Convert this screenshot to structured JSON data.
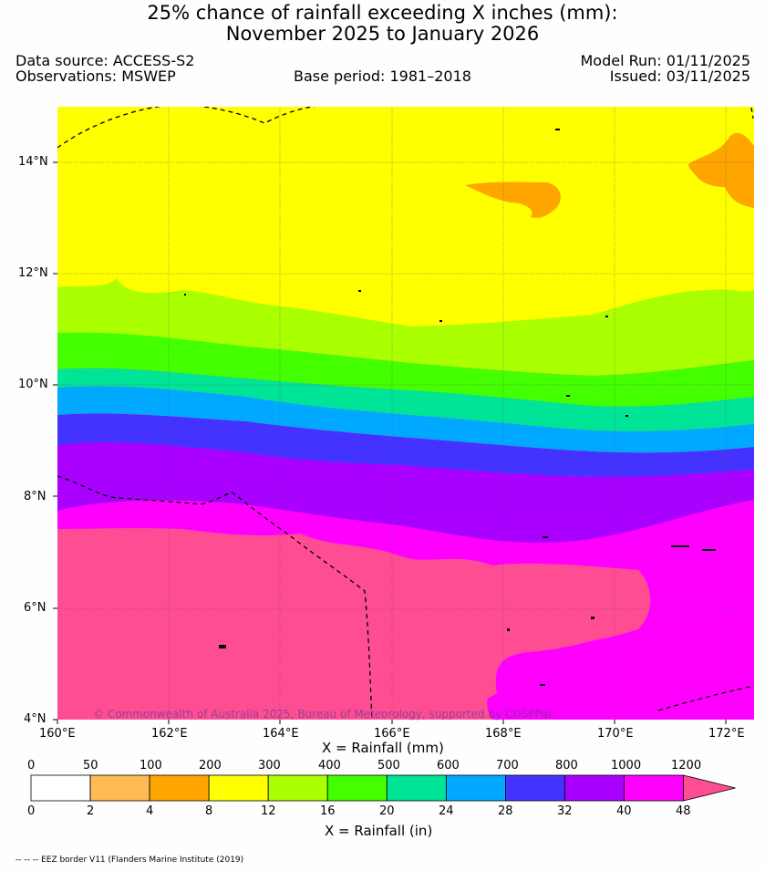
{
  "title": {
    "line1": "25% chance of rainfall exceeding X inches (mm):",
    "line2": "November 2025 to January 2026"
  },
  "meta": {
    "data_source": "Data source: ACCESS-S2",
    "observations": "Observations: MSWEP",
    "base_period": "Base period: 1981–2018",
    "model_run": "Model Run: 01/11/2025",
    "issued": "Issued: 03/11/2025"
  },
  "map": {
    "lat_labels": [
      "14°N",
      "12°N",
      "10°N",
      "8°N",
      "6°N",
      "4°N"
    ],
    "lon_labels": [
      "160°E",
      "162°E",
      "164°E",
      "166°E",
      "168°E",
      "170°E",
      "172°E"
    ],
    "axis_label": "X = Rainfall (mm)",
    "copyright": "© Commonwealth of Australia 2025, Bureau of Meteorology, supported by COSPPac"
  },
  "legend": {
    "mm_labels": [
      "0",
      "50",
      "100",
      "200",
      "300",
      "400",
      "500",
      "600",
      "700",
      "800",
      "1000",
      "1200"
    ],
    "in_labels": [
      "0",
      "2",
      "4",
      "8",
      "12",
      "16",
      "20",
      "24",
      "28",
      "32",
      "40",
      "48"
    ],
    "in_axis_label": "X = Rainfall (in)",
    "colors": [
      "#ffffff",
      "#ffbb55",
      "#ffa500",
      "#ffff00",
      "#aaff00",
      "#44ff00",
      "#00e497",
      "#00a9ff",
      "#4433ff",
      "#aa00ff",
      "#ff00ff",
      "#ff4d94"
    ]
  },
  "footnote": "-- -- -- EEZ border V11 (Flanders Marine Institute (2019)"
}
